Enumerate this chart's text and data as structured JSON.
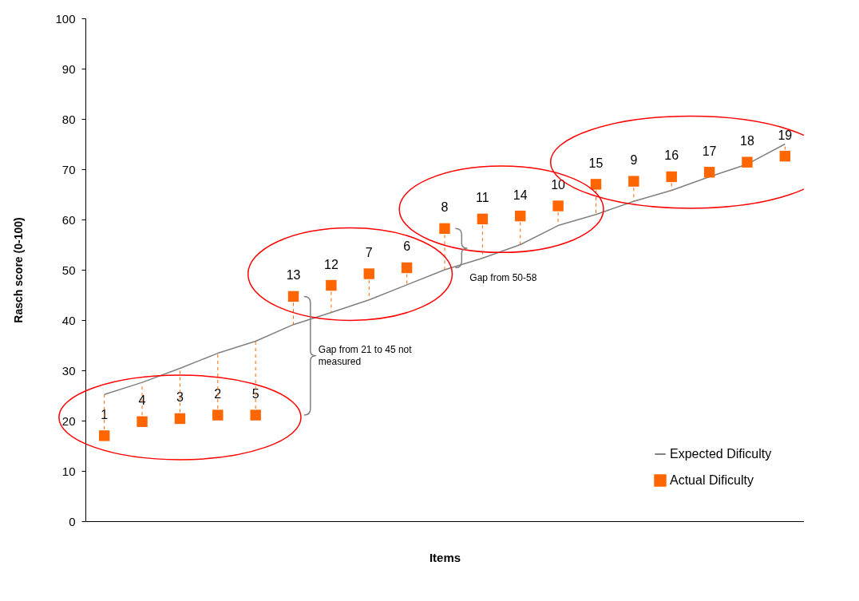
{
  "chart_data": {
    "type": "line",
    "xlabel": "Items",
    "ylabel": "Rasch score (0-100)",
    "categories": [
      "1",
      "4",
      "3",
      "2",
      "5",
      "13",
      "12",
      "7",
      "6",
      "8",
      "11",
      "14",
      "10",
      "15",
      "9",
      "16",
      "17",
      "18",
      "19"
    ],
    "series": [
      {
        "name": "Expected Dificulty",
        "color": "#808080",
        "marker": "none",
        "values": [
          25.2,
          27.6,
          30.4,
          33.4,
          35.8,
          39.1,
          41.5,
          44,
          47,
          50,
          52.3,
          55,
          58.8,
          61,
          63.6,
          65.8,
          68.5,
          71,
          75
        ]
      },
      {
        "name": "Actual Dificulty",
        "type": "scatter",
        "color": "#ff6600",
        "marker": "square",
        "values": [
          17,
          19.8,
          20.4,
          21.1,
          21.1,
          44.7,
          46.9,
          49.2,
          50.4,
          58.2,
          60.1,
          60.7,
          62.7,
          67,
          67.6,
          68.5,
          69.4,
          71.4,
          72.6
        ]
      }
    ],
    "ylim": [
      0,
      100
    ],
    "yticks": [
      0,
      10,
      20,
      30,
      40,
      50,
      60,
      70,
      80,
      90,
      100
    ],
    "tick_labels": "y",
    "legend": "bottom right",
    "grid": false,
    "annotations": [
      "Gap from 21 to 45 not measured",
      "Gap from 50-58"
    ]
  }
}
